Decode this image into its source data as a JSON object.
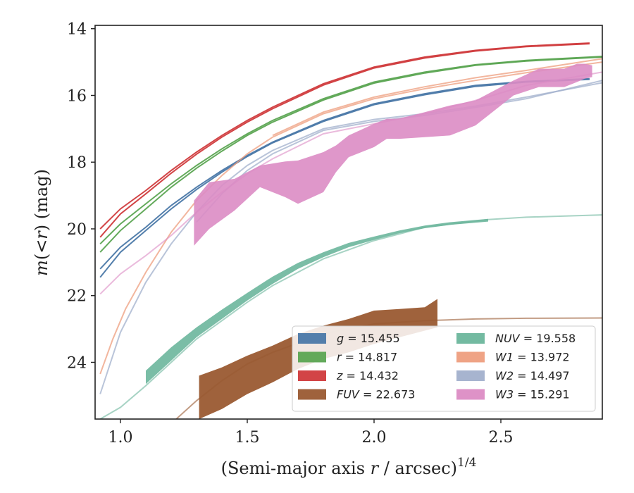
{
  "chart_data": {
    "type": "line",
    "title": "",
    "xlabel": "(Semi-major axis r / arcsec)",
    "xlabel_parts": {
      "prefix": "(Semi-major axis ",
      "var": "r",
      "suffix": " / arcsec)",
      "exponent": "1/4"
    },
    "ylabel": "m(<r) (mag)",
    "ylabel_parts": {
      "pre": "m",
      "mid": "(<",
      "var": "r",
      "post": ") (mag)"
    },
    "xlim": [
      0.9,
      2.9
    ],
    "ylim": [
      25.7,
      13.9
    ],
    "y_inverted": true,
    "xticks": [
      1.0,
      1.5,
      2.0,
      2.5
    ],
    "xtick_labels": [
      "1.0",
      "1.5",
      "2.0",
      "2.5"
    ],
    "yticks": [
      14,
      16,
      18,
      20,
      22,
      24
    ],
    "ytick_labels": [
      "14",
      "16",
      "18",
      "20",
      "22",
      "24"
    ],
    "legend_position": "lower-right",
    "series": [
      {
        "name": "g",
        "label_var": "g",
        "value": "15.455",
        "color": "#4a78a8",
        "curves": [
          {
            "x": [
              0.92,
              1.0,
              1.1,
              1.2,
              1.3,
              1.4,
              1.5,
              1.6,
              1.8,
              2.0,
              2.2,
              2.4,
              2.6,
              2.85
            ],
            "y": [
              21.2,
              20.55,
              19.95,
              19.3,
              18.75,
              18.25,
              17.8,
              17.4,
              16.75,
              16.25,
              15.95,
              15.7,
              15.58,
              15.5
            ]
          },
          {
            "x": [
              0.92,
              1.0,
              1.1,
              1.2,
              1.3,
              1.4,
              1.5,
              1.6,
              1.8,
              2.0,
              2.2,
              2.4,
              2.6,
              2.85
            ],
            "y": [
              21.45,
              20.7,
              20.05,
              19.4,
              18.82,
              18.3,
              17.83,
              17.42,
              16.78,
              16.28,
              15.98,
              15.73,
              15.6,
              15.52
            ]
          }
        ]
      },
      {
        "name": "r",
        "label_var": "r",
        "value": "14.817",
        "color": "#5ba552",
        "curves": [
          {
            "x": [
              0.92,
              1.0,
              1.1,
              1.2,
              1.3,
              1.4,
              1.5,
              1.6,
              1.8,
              2.0,
              2.2,
              2.4,
              2.6,
              2.9
            ],
            "y": [
              20.45,
              19.85,
              19.25,
              18.65,
              18.1,
              17.6,
              17.15,
              16.75,
              16.1,
              15.6,
              15.3,
              15.08,
              14.95,
              14.83
            ]
          },
          {
            "x": [
              0.92,
              1.0,
              1.1,
              1.2,
              1.3,
              1.4,
              1.5,
              1.6,
              1.8,
              2.0,
              2.2,
              2.4,
              2.6,
              2.9
            ],
            "y": [
              20.7,
              20.05,
              19.4,
              18.75,
              18.18,
              17.67,
              17.2,
              16.8,
              16.14,
              15.63,
              15.33,
              15.1,
              14.97,
              14.85
            ]
          }
        ]
      },
      {
        "name": "z",
        "label_var": "z",
        "value": "14.432",
        "color": "#d03a3c",
        "curves": [
          {
            "x": [
              0.92,
              1.0,
              1.1,
              1.2,
              1.3,
              1.4,
              1.5,
              1.6,
              1.8,
              2.0,
              2.2,
              2.4,
              2.6,
              2.85
            ],
            "y": [
              20.0,
              19.4,
              18.85,
              18.25,
              17.7,
              17.2,
              16.75,
              16.35,
              15.65,
              15.15,
              14.85,
              14.65,
              14.52,
              14.43
            ]
          },
          {
            "x": [
              0.92,
              1.0,
              1.1,
              1.2,
              1.3,
              1.4,
              1.5,
              1.6,
              1.8,
              2.0,
              2.2,
              2.4,
              2.6,
              2.85
            ],
            "y": [
              20.25,
              19.55,
              18.95,
              18.33,
              17.76,
              17.25,
              16.8,
              16.4,
              15.69,
              15.18,
              14.88,
              14.67,
              14.54,
              14.45
            ]
          }
        ]
      },
      {
        "name": "FUV",
        "label_var": "FUV",
        "value": "22.673",
        "color": "#9a5a32",
        "band": {
          "x": [
            1.31,
            1.4,
            1.5,
            1.6,
            1.7,
            1.8,
            1.9,
            2.0,
            2.1,
            2.2,
            2.25
          ],
          "y_low": [
            25.7,
            25.4,
            24.95,
            24.6,
            24.2,
            23.9,
            23.7,
            23.45,
            23.25,
            23.05,
            22.95
          ],
          "y_high": [
            24.4,
            24.15,
            23.8,
            23.5,
            23.15,
            22.9,
            22.7,
            22.45,
            22.4,
            22.35,
            22.1
          ]
        },
        "curve": {
          "x": [
            1.22,
            1.3,
            1.4,
            1.5,
            1.6,
            1.8,
            2.0,
            2.2,
            2.4,
            2.6,
            2.9
          ],
          "y": [
            25.7,
            25.15,
            24.55,
            24.05,
            23.7,
            23.15,
            22.85,
            22.75,
            22.7,
            22.68,
            22.67
          ]
        }
      },
      {
        "name": "NUV",
        "label_var": "NUV",
        "value": "19.558",
        "color": "#6cb69c",
        "band": {
          "x": [
            1.1,
            1.2,
            1.3,
            1.4,
            1.5,
            1.6,
            1.7,
            1.8,
            1.9,
            2.0,
            2.1,
            2.2,
            2.3,
            2.45
          ],
          "y_low": [
            24.65,
            23.95,
            23.25,
            22.7,
            22.15,
            21.65,
            21.2,
            20.85,
            20.55,
            20.33,
            20.13,
            19.98,
            19.88,
            19.78
          ],
          "y_high": [
            24.25,
            23.55,
            22.95,
            22.42,
            21.92,
            21.43,
            21.02,
            20.7,
            20.42,
            20.23,
            20.05,
            19.9,
            19.8,
            19.7
          ]
        },
        "curve": {
          "x": [
            0.92,
            1.0,
            1.1,
            1.2,
            1.3,
            1.4,
            1.5,
            1.6,
            1.8,
            2.0,
            2.2,
            2.45,
            2.6,
            2.9
          ],
          "y": [
            25.7,
            25.35,
            24.7,
            24.0,
            23.3,
            22.75,
            22.2,
            21.7,
            20.9,
            20.35,
            19.95,
            19.72,
            19.65,
            19.58
          ]
        }
      },
      {
        "name": "W1",
        "label_var": "W1",
        "value": "13.972",
        "color": "#ee9e7e",
        "curves": [
          {
            "x": [
              0.92,
              0.97,
              1.02,
              1.1,
              1.2,
              1.3,
              1.4,
              1.5,
              1.6,
              1.8,
              2.0,
              2.2,
              2.4,
              2.6,
              2.9
            ],
            "y": [
              24.35,
              23.3,
              22.4,
              21.3,
              20.1,
              19.15,
              18.4,
              17.75,
              17.25,
              16.55,
              16.1,
              15.8,
              15.55,
              15.32,
              15.0
            ]
          },
          {
            "x": [
              1.6,
              1.8,
              2.0,
              2.2,
              2.4,
              2.6,
              2.9
            ],
            "y": [
              17.2,
              16.5,
              16.05,
              15.74,
              15.47,
              15.25,
              14.9
            ]
          }
        ]
      },
      {
        "name": "W2",
        "label_var": "W2",
        "value": "14.497",
        "color": "#a2b0cc",
        "curves": [
          {
            "x": [
              0.92,
              1.0,
              1.1,
              1.2,
              1.3,
              1.4,
              1.5,
              1.6,
              1.8,
              2.0,
              2.2,
              2.4,
              2.6,
              2.9
            ],
            "y": [
              24.95,
              23.1,
              21.6,
              20.45,
              19.5,
              18.7,
              18.1,
              17.65,
              17.0,
              16.72,
              16.55,
              16.32,
              16.05,
              15.62
            ]
          },
          {
            "x": [
              1.3,
              1.4,
              1.5,
              1.6,
              1.8,
              2.0,
              2.2,
              2.4,
              2.6,
              2.9
            ],
            "y": [
              19.8,
              18.95,
              18.25,
              17.75,
              17.05,
              16.78,
              16.6,
              16.36,
              16.1,
              15.55
            ]
          }
        ]
      },
      {
        "name": "W3",
        "label_var": "W3",
        "value": "15.291",
        "color": "#dc8cc4",
        "band": {
          "x": [
            1.29,
            1.35,
            1.45,
            1.55,
            1.65,
            1.7,
            1.8,
            1.85,
            1.9,
            2.0,
            2.05,
            2.1,
            2.2,
            2.3,
            2.4,
            2.5,
            2.55,
            2.65,
            2.75,
            2.8,
            2.83,
            2.86
          ],
          "y_low": [
            20.5,
            20.0,
            19.45,
            18.75,
            19.05,
            19.25,
            18.9,
            18.3,
            17.85,
            17.55,
            17.3,
            17.3,
            17.25,
            17.2,
            16.9,
            16.3,
            16.0,
            15.75,
            15.75,
            15.6,
            15.5,
            15.45
          ],
          "y_high": [
            19.15,
            18.6,
            18.5,
            18.1,
            17.98,
            17.95,
            17.7,
            17.5,
            17.2,
            16.85,
            16.7,
            16.7,
            16.5,
            16.3,
            16.15,
            15.75,
            15.55,
            15.2,
            15.2,
            15.05,
            15.05,
            15.1
          ]
        },
        "curve": {
          "x": [
            0.92,
            1.0,
            1.1,
            1.2,
            1.3,
            1.4,
            1.5,
            1.6,
            1.8,
            2.0,
            2.2,
            2.4,
            2.6,
            2.9
          ],
          "y": [
            21.95,
            21.35,
            20.8,
            20.2,
            19.5,
            18.9,
            18.35,
            17.9,
            17.15,
            16.85,
            16.55,
            16.15,
            15.7,
            15.3
          ]
        }
      }
    ]
  }
}
